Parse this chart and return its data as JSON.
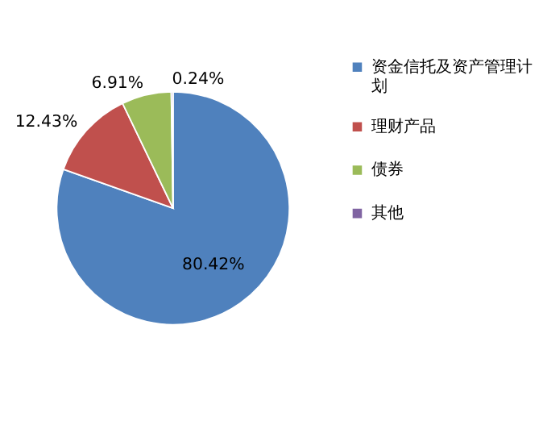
{
  "chart_data": {
    "type": "pie",
    "categories": [
      "资金信托及资产管理计划",
      "理财产品",
      "债券",
      "其他"
    ],
    "values": [
      80.42,
      12.43,
      6.91,
      0.24
    ],
    "colors": [
      "#4f81bd",
      "#c0504d",
      "#9bbb59",
      "#8064a2"
    ],
    "value_labels": [
      "80.42%",
      "12.43%",
      "6.91%",
      "0.24%"
    ],
    "legend": "right"
  }
}
